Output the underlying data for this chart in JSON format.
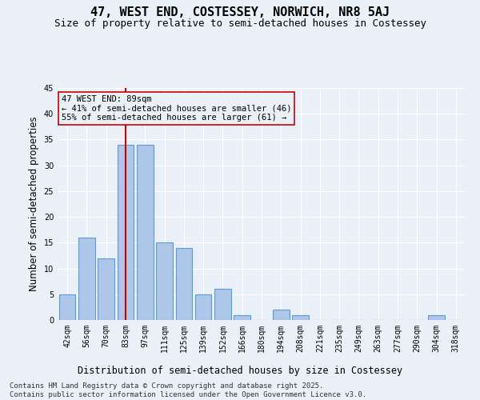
{
  "title": "47, WEST END, COSTESSEY, NORWICH, NR8 5AJ",
  "subtitle": "Size of property relative to semi-detached houses in Costessey",
  "xlabel": "Distribution of semi-detached houses by size in Costessey",
  "ylabel": "Number of semi-detached properties",
  "categories": [
    "42sqm",
    "56sqm",
    "70sqm",
    "83sqm",
    "97sqm",
    "111sqm",
    "125sqm",
    "139sqm",
    "152sqm",
    "166sqm",
    "180sqm",
    "194sqm",
    "208sqm",
    "221sqm",
    "235sqm",
    "249sqm",
    "263sqm",
    "277sqm",
    "290sqm",
    "304sqm",
    "318sqm"
  ],
  "values": [
    5,
    16,
    12,
    34,
    34,
    15,
    14,
    5,
    6,
    1,
    0,
    2,
    1,
    0,
    0,
    0,
    0,
    0,
    0,
    1,
    0
  ],
  "highlight_index": 3,
  "bar_color": "#aec6e8",
  "bar_edge_color": "#5b9bd5",
  "highlight_line_color": "#cc0000",
  "ylim": [
    0,
    45
  ],
  "yticks": [
    0,
    5,
    10,
    15,
    20,
    25,
    30,
    35,
    40,
    45
  ],
  "annotation_text": "47 WEST END: 89sqm\n← 41% of semi-detached houses are smaller (46)\n55% of semi-detached houses are larger (61) →",
  "footer": "Contains HM Land Registry data © Crown copyright and database right 2025.\nContains public sector information licensed under the Open Government Licence v3.0.",
  "background_color": "#eaf0f8",
  "grid_color": "#ffffff",
  "title_fontsize": 11,
  "subtitle_fontsize": 9,
  "axis_label_fontsize": 8.5,
  "tick_fontsize": 7,
  "footer_fontsize": 6.5,
  "annotation_fontsize": 7.5
}
